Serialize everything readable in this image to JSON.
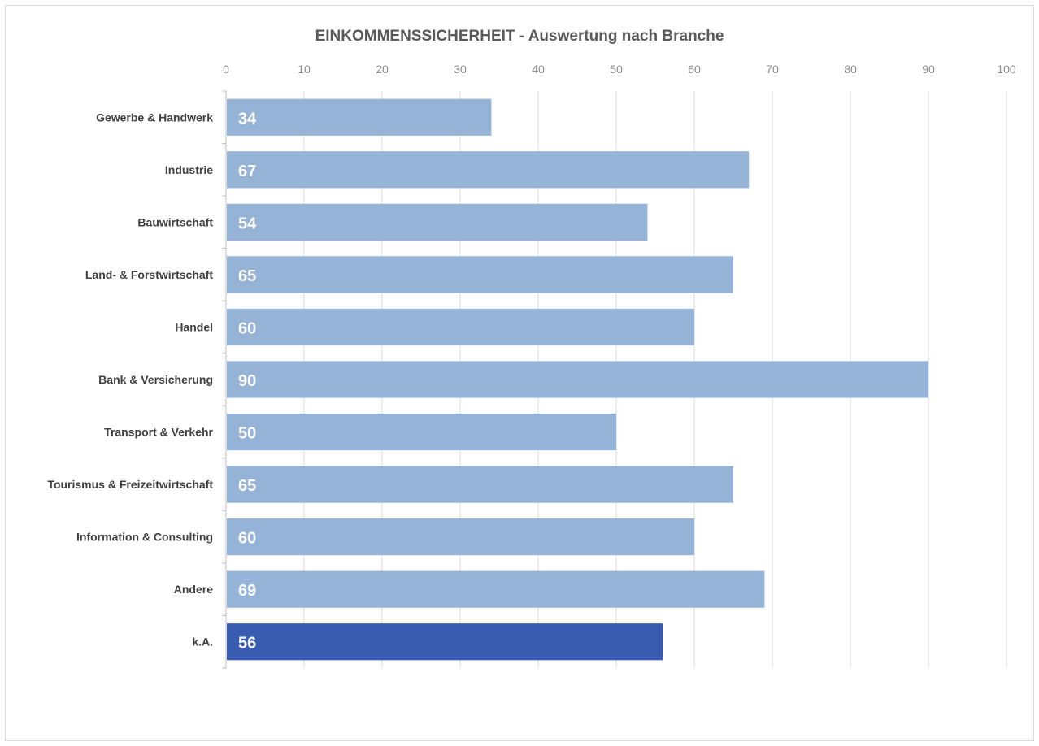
{
  "chart_data": {
    "type": "bar",
    "orientation": "horizontal",
    "title": "EINKOMMENSSICHERHEIT - Auswertung nach Branche",
    "categories": [
      "Gewerbe & Handwerk",
      "Industrie",
      "Bauwirtschaft",
      "Land- & Forstwirtschaft",
      "Handel",
      "Bank & Versicherung",
      "Transport & Verkehr",
      "Tourismus & Freizeitwirtschaft",
      "Information & Consulting",
      "Andere",
      "k.A."
    ],
    "values": [
      34,
      67,
      54,
      65,
      60,
      90,
      50,
      65,
      60,
      69,
      56
    ],
    "colors": [
      "#95b3d7",
      "#95b3d7",
      "#95b3d7",
      "#95b3d7",
      "#95b3d7",
      "#95b3d7",
      "#95b3d7",
      "#95b3d7",
      "#95b3d7",
      "#95b3d7",
      "#3a5cb0"
    ],
    "xlim": [
      0,
      100
    ],
    "xticks": [
      0,
      10,
      20,
      30,
      40,
      50,
      60,
      70,
      80,
      90,
      100
    ],
    "xaxis_position": "top",
    "grid": true,
    "data_labels": true,
    "xlabel": "",
    "ylabel": ""
  }
}
